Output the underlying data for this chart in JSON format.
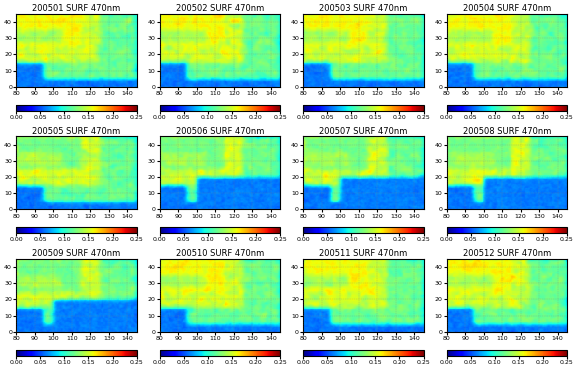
{
  "titles": [
    "200501 SURF 470nm",
    "200502 SURF 470nm",
    "200503 SURF 470nm",
    "200504 SURF 470nm",
    "200505 SURF 470nm",
    "200506 SURF 470nm",
    "200507 SURF 470nm",
    "200508 SURF 470nm",
    "200509 SURF 470nm",
    "200510 SURF 470nm",
    "200511 SURF 470nm",
    "200512 SURF 470nm"
  ],
  "xlim": [
    80,
    145
  ],
  "ylim": [
    0,
    45
  ],
  "xticks": [
    80,
    90,
    100,
    110,
    120,
    130,
    140
  ],
  "yticks": [
    0,
    10,
    20,
    30,
    40
  ],
  "cbar_ticks": [
    0.0,
    0.05,
    0.1,
    0.15,
    0.2,
    0.25
  ],
  "vmin": 0.0,
  "vmax": 0.25,
  "cmap": "jet",
  "nrows": 3,
  "ncols": 4,
  "figsize": [
    5.78,
    3.69
  ],
  "dpi": 100,
  "title_fontsize": 6,
  "tick_fontsize": 4.5,
  "cbar_fontsize": 4.5,
  "lon_min": 60,
  "lon_max": 160,
  "lat_min": -10,
  "lat_max": 55,
  "seed_base": 42
}
